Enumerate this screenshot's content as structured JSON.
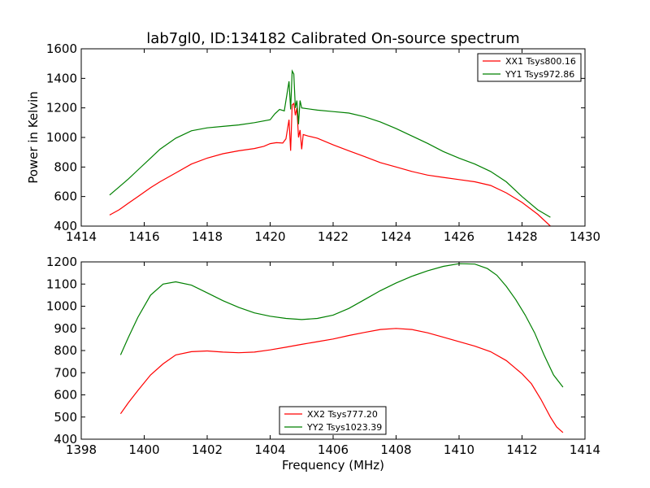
{
  "figure": {
    "title": "lab7gl0, ID:134182 Calibrated On-source spectrum"
  },
  "chart_data": [
    {
      "type": "line",
      "title": "lab7gl0, ID:134182 Calibrated On-source spectrum",
      "xlabel": "",
      "ylabel": "Power in Kelvin",
      "xlim": [
        1414,
        1430
      ],
      "ylim": [
        400,
        1600
      ],
      "xticks": [
        1414,
        1416,
        1418,
        1420,
        1422,
        1424,
        1426,
        1428,
        1430
      ],
      "yticks": [
        400,
        600,
        800,
        1000,
        1200,
        1400,
        1600
      ],
      "legend_position": "top-right",
      "grid": false,
      "series": [
        {
          "name": "XX1 Tsys800.16",
          "color": "#ff0000",
          "points": [
            [
              1414.9,
              475
            ],
            [
              1415.2,
              510
            ],
            [
              1415.5,
              555
            ],
            [
              1415.8,
              600
            ],
            [
              1416.2,
              660
            ],
            [
              1416.5,
              700
            ],
            [
              1417,
              760
            ],
            [
              1417.5,
              820
            ],
            [
              1418,
              860
            ],
            [
              1418.5,
              890
            ],
            [
              1419,
              910
            ],
            [
              1419.5,
              925
            ],
            [
              1419.8,
              940
            ],
            [
              1420,
              958
            ],
            [
              1420.2,
              965
            ],
            [
              1420.4,
              962
            ],
            [
              1420.5,
              990
            ],
            [
              1420.6,
              1120
            ],
            [
              1420.65,
              910
            ],
            [
              1420.7,
              1220
            ],
            [
              1420.75,
              1230
            ],
            [
              1420.8,
              1150
            ],
            [
              1420.85,
              1200
            ],
            [
              1420.9,
              1000
            ],
            [
              1420.95,
              1050
            ],
            [
              1421.0,
              920
            ],
            [
              1421.05,
              1020
            ],
            [
              1421.2,
              1010
            ],
            [
              1421.5,
              995
            ],
            [
              1422,
              950
            ],
            [
              1422.5,
              910
            ],
            [
              1423,
              870
            ],
            [
              1423.5,
              830
            ],
            [
              1424,
              800
            ],
            [
              1424.5,
              770
            ],
            [
              1425,
              745
            ],
            [
              1425.5,
              730
            ],
            [
              1426,
              715
            ],
            [
              1426.5,
              700
            ],
            [
              1427,
              675
            ],
            [
              1427.5,
              625
            ],
            [
              1428,
              560
            ],
            [
              1428.5,
              480
            ],
            [
              1428.9,
              400
            ]
          ]
        },
        {
          "name": "YY1 Tsys972.86",
          "color": "#008000",
          "points": [
            [
              1414.9,
              610
            ],
            [
              1415.2,
              665
            ],
            [
              1415.5,
              720
            ],
            [
              1415.8,
              780
            ],
            [
              1416.2,
              860
            ],
            [
              1416.5,
              920
            ],
            [
              1417,
              995
            ],
            [
              1417.5,
              1045
            ],
            [
              1418,
              1065
            ],
            [
              1418.5,
              1075
            ],
            [
              1419,
              1085
            ],
            [
              1419.5,
              1100
            ],
            [
              1420,
              1120
            ],
            [
              1420.15,
              1160
            ],
            [
              1420.3,
              1190
            ],
            [
              1420.45,
              1180
            ],
            [
              1420.6,
              1380
            ],
            [
              1420.65,
              1190
            ],
            [
              1420.7,
              1450
            ],
            [
              1420.75,
              1430
            ],
            [
              1420.8,
              1200
            ],
            [
              1420.85,
              1250
            ],
            [
              1420.9,
              1090
            ],
            [
              1420.95,
              1250
            ],
            [
              1421.0,
              1200
            ],
            [
              1421.5,
              1185
            ],
            [
              1422,
              1175
            ],
            [
              1422.5,
              1165
            ],
            [
              1423,
              1140
            ],
            [
              1423.5,
              1105
            ],
            [
              1424,
              1060
            ],
            [
              1424.5,
              1010
            ],
            [
              1425,
              960
            ],
            [
              1425.5,
              905
            ],
            [
              1426,
              860
            ],
            [
              1426.5,
              820
            ],
            [
              1427,
              770
            ],
            [
              1427.5,
              700
            ],
            [
              1428,
              600
            ],
            [
              1428.5,
              510
            ],
            [
              1428.9,
              460
            ]
          ]
        }
      ]
    },
    {
      "type": "line",
      "title": "",
      "xlabel": "Frequency (MHz)",
      "ylabel": "",
      "xlim": [
        1398,
        1414
      ],
      "ylim": [
        400,
        1200
      ],
      "xticks": [
        1398,
        1400,
        1402,
        1404,
        1406,
        1408,
        1410,
        1412,
        1414
      ],
      "yticks": [
        400,
        500,
        600,
        700,
        800,
        900,
        1000,
        1100,
        1200
      ],
      "legend_position": "bottom-center",
      "grid": false,
      "series": [
        {
          "name": "XX2 Tsys777.20",
          "color": "#ff0000",
          "points": [
            [
              1399.25,
              515
            ],
            [
              1399.5,
              565
            ],
            [
              1399.8,
              620
            ],
            [
              1400.2,
              690
            ],
            [
              1400.6,
              740
            ],
            [
              1401,
              780
            ],
            [
              1401.5,
              795
            ],
            [
              1402,
              798
            ],
            [
              1402.5,
              793
            ],
            [
              1403,
              790
            ],
            [
              1403.5,
              793
            ],
            [
              1404,
              803
            ],
            [
              1404.5,
              815
            ],
            [
              1405,
              828
            ],
            [
              1405.5,
              840
            ],
            [
              1406,
              852
            ],
            [
              1406.5,
              868
            ],
            [
              1407,
              882
            ],
            [
              1407.5,
              895
            ],
            [
              1408,
              900
            ],
            [
              1408.5,
              895
            ],
            [
              1409,
              880
            ],
            [
              1409.5,
              860
            ],
            [
              1410,
              840
            ],
            [
              1410.5,
              820
            ],
            [
              1411,
              795
            ],
            [
              1411.5,
              755
            ],
            [
              1412,
              695
            ],
            [
              1412.3,
              650
            ],
            [
              1412.6,
              580
            ],
            [
              1412.9,
              500
            ],
            [
              1413.1,
              455
            ],
            [
              1413.3,
              430
            ]
          ]
        },
        {
          "name": "YY2 Tsys1023.39",
          "color": "#008000",
          "points": [
            [
              1399.25,
              780
            ],
            [
              1399.5,
              860
            ],
            [
              1399.8,
              950
            ],
            [
              1400.2,
              1050
            ],
            [
              1400.6,
              1100
            ],
            [
              1401,
              1110
            ],
            [
              1401.5,
              1095
            ],
            [
              1402,
              1060
            ],
            [
              1402.5,
              1025
            ],
            [
              1403,
              995
            ],
            [
              1403.5,
              970
            ],
            [
              1404,
              955
            ],
            [
              1404.5,
              945
            ],
            [
              1405,
              940
            ],
            [
              1405.5,
              945
            ],
            [
              1406,
              960
            ],
            [
              1406.5,
              990
            ],
            [
              1407,
              1030
            ],
            [
              1407.5,
              1070
            ],
            [
              1408,
              1105
            ],
            [
              1408.5,
              1135
            ],
            [
              1409,
              1160
            ],
            [
              1409.5,
              1180
            ],
            [
              1410,
              1192
            ],
            [
              1410.5,
              1190
            ],
            [
              1410.9,
              1170
            ],
            [
              1411.2,
              1140
            ],
            [
              1411.5,
              1090
            ],
            [
              1411.8,
              1030
            ],
            [
              1412.1,
              960
            ],
            [
              1412.4,
              880
            ],
            [
              1412.7,
              780
            ],
            [
              1413,
              690
            ],
            [
              1413.3,
              635
            ]
          ]
        }
      ]
    }
  ]
}
